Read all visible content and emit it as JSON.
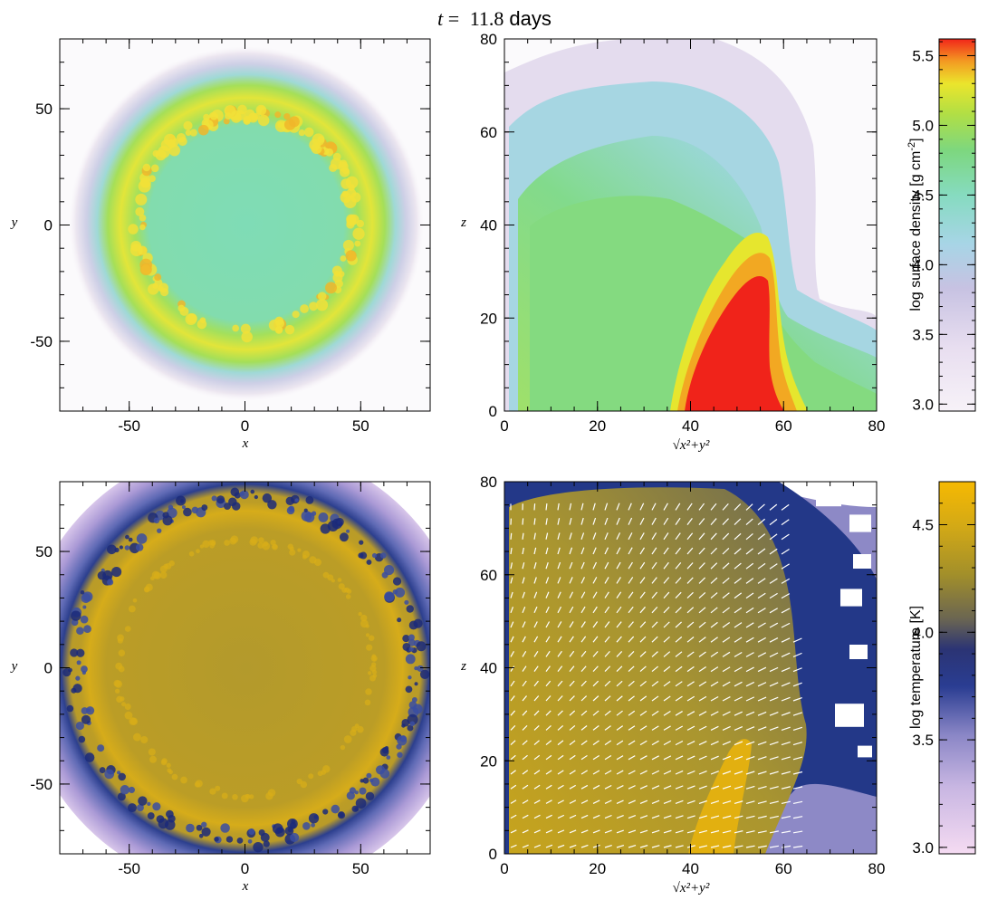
{
  "title": {
    "var": "t",
    "eq": " = ",
    "value": "11.8",
    "unit": "days"
  },
  "colors": {
    "density_scale": [
      "#f6f1f8",
      "#ebe2ef",
      "#c9c3e1",
      "#aad6e5",
      "#8fdcc8",
      "#7dd77f",
      "#a6de4e",
      "#e9e82c",
      "#f2aa22",
      "#f23e1a"
    ],
    "temperature_scale": [
      "#f4d7f1",
      "#cbb7e4",
      "#8e86c4",
      "#2b3d91",
      "#1c2a7c",
      "#6e6650",
      "#a6901e",
      "#d2a814",
      "#f3b705"
    ],
    "arrow": "#ffffff"
  },
  "chart_data": [
    {
      "type": "heatmap",
      "name": "density-xy",
      "xlabel": "x",
      "ylabel": "y",
      "xlim": [
        -80,
        80
      ],
      "ylim": [
        -80,
        80
      ],
      "xticks": [
        -50,
        0,
        50
      ],
      "yticks": [
        -50,
        0,
        50
      ],
      "xtick_labels": [
        "-50",
        "0",
        "50"
      ],
      "ytick_labels": [
        "-50",
        "0",
        "50"
      ]
    },
    {
      "type": "heatmap",
      "name": "density-rz",
      "xlabel": "√x²+y²",
      "ylabel": "z",
      "xlim": [
        0,
        80
      ],
      "ylim": [
        0,
        80
      ],
      "xticks": [
        0,
        20,
        40,
        60,
        80
      ],
      "yticks": [
        0,
        20,
        40,
        60,
        80
      ],
      "xtick_labels": [
        "0",
        "20",
        "40",
        "60",
        "80"
      ],
      "ytick_labels": [
        "0",
        "20",
        "40",
        "60",
        "80"
      ]
    },
    {
      "type": "heatmap",
      "name": "temperature-xy",
      "xlabel": "x",
      "ylabel": "y",
      "xlim": [
        -80,
        80
      ],
      "ylim": [
        -80,
        80
      ],
      "xticks": [
        -50,
        0,
        50
      ],
      "yticks": [
        -50,
        0,
        50
      ],
      "xtick_labels": [
        "-50",
        "0",
        "50"
      ],
      "ytick_labels": [
        "-50",
        "0",
        "50"
      ]
    },
    {
      "type": "heatmap",
      "name": "temperature-rz",
      "xlabel": "√x²+y²",
      "ylabel": "z",
      "xlim": [
        0,
        80
      ],
      "ylim": [
        0,
        80
      ],
      "xticks": [
        0,
        20,
        40,
        60,
        80
      ],
      "yticks": [
        0,
        20,
        40,
        60,
        80
      ],
      "xtick_labels": [
        "0",
        "20",
        "40",
        "60",
        "80"
      ],
      "ytick_labels": [
        "0",
        "20",
        "40",
        "60",
        "80"
      ]
    }
  ],
  "colorbars": [
    {
      "name": "density-colorbar",
      "label": "log surface density [g cm",
      "label_sup": "-2",
      "label_end": "]",
      "range": [
        2.95,
        5.62
      ],
      "ticks": [
        3.0,
        3.5,
        4.0,
        4.5,
        5.0,
        5.5
      ],
      "tick_labels": [
        "3.0",
        "3.5",
        "4.0",
        "4.5",
        "5.0",
        "5.5"
      ]
    },
    {
      "name": "temperature-colorbar",
      "label": "log temperature [K]",
      "range": [
        2.97,
        4.7
      ],
      "ticks": [
        3.0,
        3.5,
        4.0,
        4.5
      ],
      "tick_labels": [
        "3.0",
        "3.5",
        "4.0",
        "4.5"
      ]
    }
  ]
}
